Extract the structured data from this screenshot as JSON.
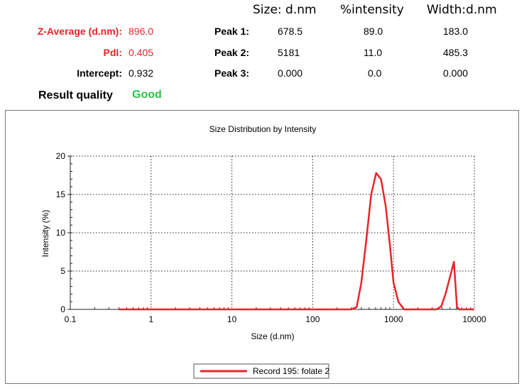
{
  "results": {
    "z_average_label": "Z-Average (d.nm):",
    "z_average_value": "896.0",
    "pdi_label": "PdI:",
    "pdi_value": "0.405",
    "intercept_label": "Intercept:",
    "intercept_value": "0.932",
    "result_quality_label": "Result quality",
    "result_quality_value": "Good",
    "label_color": "#e8242a",
    "good_color": "#2fbf4a"
  },
  "peaks": {
    "headers": [
      "Size: d.nm",
      "%intensity",
      "Width:d.nm"
    ],
    "rows": [
      {
        "label": "Peak 1:",
        "size": "678.5",
        "intensity": "89.0",
        "width": "183.0"
      },
      {
        "label": "Peak 2:",
        "size": "5181",
        "intensity": "11.0",
        "width": "485.3"
      },
      {
        "label": "Peak 3:",
        "size": "0.000",
        "intensity": "0.0",
        "width": "0.000"
      }
    ]
  },
  "chart_data": {
    "type": "line",
    "title": "Size Distribution by Intensity",
    "xlabel": "Size (d.nm)",
    "ylabel": "Intensity (%)",
    "xscale": "log",
    "xlim": [
      0.1,
      10000
    ],
    "ylim": [
      0,
      20
    ],
    "xticks": [
      "0.1",
      "1",
      "10",
      "100",
      "1000",
      "10000"
    ],
    "yticks": [
      "0",
      "5",
      "10",
      "15",
      "20"
    ],
    "grid": true,
    "legend_position": "bottom-center",
    "series": [
      {
        "name": "Record 195: folate 2",
        "color": "#e8242a",
        "x": [
          0.4,
          300,
          350,
          400,
          460,
          530,
          610,
          700,
          800,
          900,
          1000,
          1150,
          1350,
          1600,
          2500,
          3400,
          3900,
          4400,
          5000,
          5600,
          6100,
          6500,
          10000
        ],
        "y": [
          0,
          0,
          0.3,
          3.5,
          9,
          15,
          17.8,
          17,
          13.5,
          8.5,
          3.5,
          1,
          0,
          0,
          0,
          0,
          0.4,
          2,
          4.2,
          6.2,
          0.3,
          0,
          0
        ]
      }
    ]
  }
}
